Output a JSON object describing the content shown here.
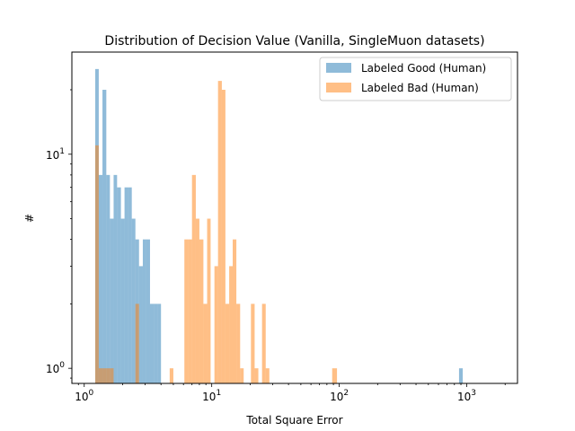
{
  "chart_data": {
    "type": "bar",
    "title": "Distribution of Decision Value (Vanilla, SingleMuon datasets)",
    "xlabel": "Total Square Error",
    "ylabel": "#",
    "x_scale": "log",
    "y_scale": "log",
    "xlim": [
      0.8,
      2500
    ],
    "ylim": [
      0.85,
      30
    ],
    "x_ticks": [
      {
        "value": 1,
        "base": "10",
        "exp": "0"
      },
      {
        "value": 10,
        "base": "10",
        "exp": "1"
      },
      {
        "value": 100,
        "base": "10",
        "exp": "2"
      },
      {
        "value": 1000,
        "base": "10",
        "exp": "3"
      }
    ],
    "y_ticks": [
      {
        "value": 1,
        "base": "10",
        "exp": "0"
      },
      {
        "value": 10,
        "base": "10",
        "exp": "1"
      }
    ],
    "legend_position": "top-right",
    "series": [
      {
        "name": "Labeled Good (Human)",
        "color": "#1f77b4",
        "alpha": 0.5,
        "bins": [
          {
            "x0": 1.22,
            "x1": 1.3,
            "value": 25
          },
          {
            "x0": 1.3,
            "x1": 1.39,
            "value": 8
          },
          {
            "x0": 1.39,
            "x1": 1.49,
            "value": 20
          },
          {
            "x0": 1.49,
            "x1": 1.59,
            "value": 8
          },
          {
            "x0": 1.59,
            "x1": 1.7,
            "value": 5
          },
          {
            "x0": 1.7,
            "x1": 1.81,
            "value": 8
          },
          {
            "x0": 1.81,
            "x1": 1.94,
            "value": 7
          },
          {
            "x0": 1.94,
            "x1": 2.07,
            "value": 5
          },
          {
            "x0": 2.07,
            "x1": 2.21,
            "value": 7
          },
          {
            "x0": 2.21,
            "x1": 2.36,
            "value": 7
          },
          {
            "x0": 2.36,
            "x1": 2.52,
            "value": 5
          },
          {
            "x0": 2.52,
            "x1": 2.69,
            "value": 4
          },
          {
            "x0": 2.69,
            "x1": 2.88,
            "value": 3
          },
          {
            "x0": 2.88,
            "x1": 3.07,
            "value": 4
          },
          {
            "x0": 3.07,
            "x1": 3.28,
            "value": 4
          },
          {
            "x0": 3.28,
            "x1": 3.51,
            "value": 2
          },
          {
            "x0": 3.51,
            "x1": 3.75,
            "value": 2
          },
          {
            "x0": 3.75,
            "x1": 4.0,
            "value": 2
          },
          {
            "x0": 870,
            "x1": 930,
            "value": 1
          }
        ]
      },
      {
        "name": "Labeled Bad (Human)",
        "color": "#ff7f0e",
        "alpha": 0.5,
        "bins": [
          {
            "x0": 1.22,
            "x1": 1.3,
            "value": 11
          },
          {
            "x0": 1.3,
            "x1": 1.39,
            "value": 1
          },
          {
            "x0": 1.39,
            "x1": 1.49,
            "value": 1
          },
          {
            "x0": 1.49,
            "x1": 1.59,
            "value": 1
          },
          {
            "x0": 1.59,
            "x1": 1.7,
            "value": 1
          },
          {
            "x0": 2.52,
            "x1": 2.69,
            "value": 2
          },
          {
            "x0": 4.68,
            "x1": 5.0,
            "value": 1
          },
          {
            "x0": 6.1,
            "x1": 6.5,
            "value": 4
          },
          {
            "x0": 6.5,
            "x1": 7.0,
            "value": 4
          },
          {
            "x0": 7.0,
            "x1": 7.5,
            "value": 8
          },
          {
            "x0": 7.5,
            "x1": 8.0,
            "value": 5
          },
          {
            "x0": 8.0,
            "x1": 8.6,
            "value": 4
          },
          {
            "x0": 8.6,
            "x1": 9.2,
            "value": 2
          },
          {
            "x0": 9.2,
            "x1": 9.8,
            "value": 5
          },
          {
            "x0": 10.5,
            "x1": 11.2,
            "value": 3
          },
          {
            "x0": 11.2,
            "x1": 12.0,
            "value": 22
          },
          {
            "x0": 12.0,
            "x1": 12.8,
            "value": 20
          },
          {
            "x0": 12.8,
            "x1": 13.7,
            "value": 2
          },
          {
            "x0": 13.7,
            "x1": 14.6,
            "value": 3
          },
          {
            "x0": 14.6,
            "x1": 15.6,
            "value": 4
          },
          {
            "x0": 15.6,
            "x1": 16.7,
            "value": 2
          },
          {
            "x0": 16.7,
            "x1": 17.8,
            "value": 1
          },
          {
            "x0": 20.3,
            "x1": 21.7,
            "value": 2
          },
          {
            "x0": 21.7,
            "x1": 23.2,
            "value": 1
          },
          {
            "x0": 24.8,
            "x1": 26.5,
            "value": 2
          },
          {
            "x0": 26.5,
            "x1": 28.3,
            "value": 1
          },
          {
            "x0": 88,
            "x1": 96,
            "value": 1
          }
        ]
      }
    ]
  }
}
